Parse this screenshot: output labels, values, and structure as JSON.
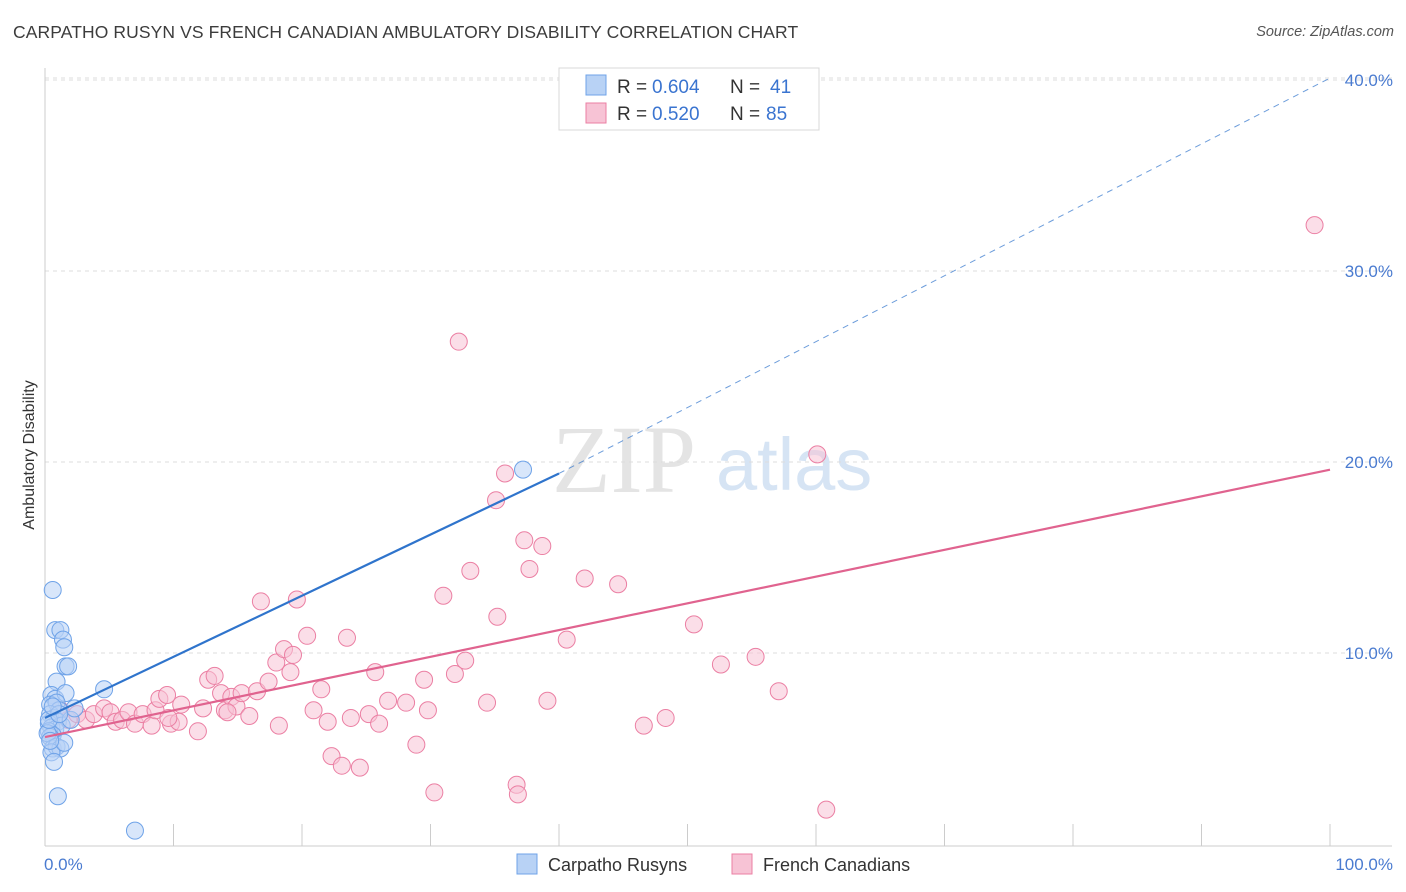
{
  "header": {
    "title": "CARPATHO RUSYN VS FRENCH CANADIAN AMBULATORY DISABILITY CORRELATION CHART",
    "source": "Source: ZipAtlas.com"
  },
  "watermark": {
    "zip": "ZIP",
    "atlas": "atlas"
  },
  "colors": {
    "blue": "#6fa3e8",
    "blue_fill": "#b8d2f5",
    "blue_line": "#2f74cc",
    "pink": "#eb7fa3",
    "pink_fill": "#f7c3d5",
    "pink_line": "#e0638f",
    "grid": "#dddddd",
    "tick_text": "#4a7bd0"
  },
  "legend": {
    "rows": [
      {
        "r_label": "R =",
        "r_value": "0.604",
        "n_label": "N =",
        "n_value": "41"
      },
      {
        "r_label": "R =",
        "r_value": "0.520",
        "n_label": "N =",
        "n_value": "85"
      }
    ]
  },
  "bottom_legend": [
    "Carpatho Rusyns",
    "French Canadians"
  ],
  "chart_data": {
    "type": "scatter",
    "title": "CARPATHO RUSYN VS FRENCH CANADIAN AMBULATORY DISABILITY CORRELATION CHART",
    "xlabel": "",
    "ylabel": "Ambulatory Disability",
    "xlim": [
      0,
      100
    ],
    "ylim": [
      0,
      42
    ],
    "x_tick_labels": [
      "0.0%",
      "100.0%"
    ],
    "y_ticks": [
      10,
      20,
      30,
      40
    ],
    "y_tick_labels": [
      "10.0%",
      "20.0%",
      "30.0%",
      "40.0%"
    ],
    "grid": true,
    "legend_position": "top-center",
    "series": [
      {
        "name": "Carpatho Rusyns",
        "r": 0.604,
        "n": 41,
        "trend": {
          "x0": 0,
          "y0": 6.6,
          "x1": 40,
          "y1": 19.4,
          "dashed_to_x": 100,
          "dashed_to_y": 40.1
        },
        "points": [
          [
            0.6,
            13.3
          ],
          [
            0.8,
            11.2
          ],
          [
            1.2,
            11.2
          ],
          [
            1.4,
            10.7
          ],
          [
            1.5,
            10.3
          ],
          [
            1.6,
            9.3
          ],
          [
            1.8,
            9.3
          ],
          [
            0.9,
            8.5
          ],
          [
            0.5,
            7.8
          ],
          [
            0.8,
            7.6
          ],
          [
            1.6,
            7.9
          ],
          [
            0.4,
            7.3
          ],
          [
            0.9,
            7.4
          ],
          [
            1.1,
            7.0
          ],
          [
            0.4,
            6.8
          ],
          [
            0.7,
            6.6
          ],
          [
            1.0,
            6.4
          ],
          [
            0.3,
            6.3
          ],
          [
            0.5,
            6.1
          ],
          [
            0.8,
            6.0
          ],
          [
            1.3,
            6.2
          ],
          [
            0.3,
            5.9
          ],
          [
            0.6,
            5.7
          ],
          [
            0.4,
            5.6
          ],
          [
            0.2,
            5.8
          ],
          [
            0.6,
            5.0
          ],
          [
            0.9,
            5.1
          ],
          [
            1.2,
            5.0
          ],
          [
            0.5,
            4.8
          ],
          [
            0.7,
            4.3
          ],
          [
            1.0,
            2.5
          ],
          [
            1.5,
            5.3
          ],
          [
            2.0,
            6.5
          ],
          [
            2.3,
            7.1
          ],
          [
            4.6,
            8.1
          ],
          [
            37.2,
            19.6
          ],
          [
            7.0,
            0.7
          ],
          [
            0.3,
            6.5
          ],
          [
            1.1,
            6.8
          ],
          [
            0.6,
            7.2
          ],
          [
            0.4,
            5.4
          ]
        ]
      },
      {
        "name": "French Canadians",
        "r": 0.52,
        "n": 85,
        "trend": {
          "x0": 0,
          "y0": 5.6,
          "x1": 100,
          "y1": 19.6
        },
        "points": [
          [
            1.2,
            7.0
          ],
          [
            1.8,
            6.5
          ],
          [
            2.5,
            6.8
          ],
          [
            3.2,
            6.5
          ],
          [
            3.8,
            6.8
          ],
          [
            4.6,
            7.1
          ],
          [
            5.1,
            6.9
          ],
          [
            5.5,
            6.4
          ],
          [
            6.0,
            6.5
          ],
          [
            6.5,
            6.9
          ],
          [
            7.0,
            6.3
          ],
          [
            7.6,
            6.8
          ],
          [
            8.3,
            6.2
          ],
          [
            8.6,
            7.0
          ],
          [
            8.9,
            7.6
          ],
          [
            9.5,
            7.8
          ],
          [
            9.8,
            6.3
          ],
          [
            10.4,
            6.4
          ],
          [
            10.6,
            7.3
          ],
          [
            11.9,
            5.9
          ],
          [
            12.3,
            7.1
          ],
          [
            12.7,
            8.6
          ],
          [
            13.2,
            8.8
          ],
          [
            13.7,
            7.9
          ],
          [
            14.0,
            7.0
          ],
          [
            14.5,
            7.7
          ],
          [
            14.9,
            7.2
          ],
          [
            15.3,
            7.9
          ],
          [
            15.9,
            6.7
          ],
          [
            16.5,
            8.0
          ],
          [
            16.8,
            12.7
          ],
          [
            17.4,
            8.5
          ],
          [
            18.0,
            9.5
          ],
          [
            18.6,
            10.2
          ],
          [
            19.1,
            9.0
          ],
          [
            19.3,
            9.9
          ],
          [
            19.6,
            12.8
          ],
          [
            20.4,
            10.9
          ],
          [
            20.9,
            7.0
          ],
          [
            21.5,
            8.1
          ],
          [
            22.0,
            6.4
          ],
          [
            22.3,
            4.6
          ],
          [
            23.1,
            4.1
          ],
          [
            23.5,
            10.8
          ],
          [
            23.8,
            6.6
          ],
          [
            24.5,
            4.0
          ],
          [
            25.2,
            6.8
          ],
          [
            25.7,
            9.0
          ],
          [
            26.0,
            6.3
          ],
          [
            26.7,
            7.5
          ],
          [
            28.1,
            7.4
          ],
          [
            28.9,
            5.2
          ],
          [
            29.5,
            8.6
          ],
          [
            29.8,
            7.0
          ],
          [
            30.3,
            2.7
          ],
          [
            31.0,
            13.0
          ],
          [
            31.9,
            8.9
          ],
          [
            32.2,
            26.3
          ],
          [
            32.7,
            9.6
          ],
          [
            33.1,
            14.3
          ],
          [
            34.4,
            7.4
          ],
          [
            35.1,
            18.0
          ],
          [
            35.2,
            11.9
          ],
          [
            35.8,
            19.4
          ],
          [
            36.7,
            3.1
          ],
          [
            36.8,
            2.6
          ],
          [
            37.3,
            15.9
          ],
          [
            37.7,
            14.4
          ],
          [
            38.7,
            15.6
          ],
          [
            39.1,
            7.5
          ],
          [
            40.6,
            10.7
          ],
          [
            42.0,
            13.9
          ],
          [
            44.6,
            13.6
          ],
          [
            46.6,
            6.2
          ],
          [
            48.3,
            6.6
          ],
          [
            50.5,
            11.5
          ],
          [
            52.6,
            9.4
          ],
          [
            55.3,
            9.8
          ],
          [
            57.1,
            8.0
          ],
          [
            60.1,
            20.4
          ],
          [
            60.8,
            1.8
          ],
          [
            98.8,
            32.4
          ],
          [
            9.6,
            6.6
          ],
          [
            14.2,
            6.9
          ],
          [
            18.2,
            6.2
          ]
        ]
      }
    ]
  }
}
